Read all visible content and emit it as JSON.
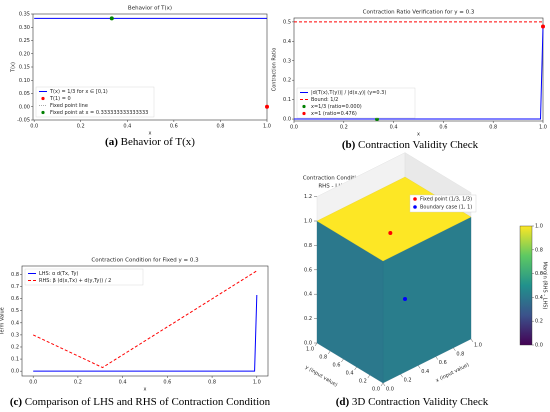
{
  "chart_data": [
    {
      "type": "line",
      "title": "Behavior of T(x)",
      "xlabel": "x",
      "ylabel": "T(x)",
      "caption": {
        "label": "(a)",
        "text": "Behavior of T(x)"
      },
      "xlim": [
        -0.005,
        1.0
      ],
      "ylim": [
        -0.05,
        0.35
      ],
      "xticks": [
        {
          "value": 0,
          "label": "0.0"
        },
        0.2,
        0.4,
        0.6,
        0.8,
        {
          "value": 1,
          "label": "1.0"
        }
      ],
      "yticks": [
        -0.05,
        {
          "value": 0,
          "label": "0.00"
        },
        0.05,
        {
          "value": 0.1,
          "label": "0.10"
        },
        0.15,
        {
          "value": 0.2,
          "label": "0.20"
        },
        0.25,
        {
          "value": 0.3,
          "label": "0.30"
        },
        0.35
      ],
      "legend": "lower left",
      "series": [
        {
          "name": "T(x) = 1/3 for x ∈ [0,1)",
          "color": "#0000ff",
          "style": "solid",
          "x": [
            0,
            1.0
          ],
          "values": [
            0.3333,
            0.3333
          ]
        },
        {
          "name": "T(1) = 0",
          "color": "#ff0000",
          "style": "point",
          "x": [
            1.0
          ],
          "values": [
            0
          ]
        },
        {
          "name": "Fixed point line",
          "color": "#aaaaaa",
          "style": "dotted"
        },
        {
          "name": "Fixed point at x = 0.333333333333333",
          "color": "#008000",
          "style": "point",
          "x": [
            0.3333
          ],
          "values": [
            0.3333
          ]
        }
      ]
    },
    {
      "type": "line",
      "title": "Contraction Ratio Verification for y = 0.3",
      "xlabel": "x",
      "ylabel": "Contraction Ratio",
      "caption": {
        "label": "(b)",
        "text": "Contraction Validity Check"
      },
      "xlim": [
        0,
        1.0
      ],
      "ylim": [
        -0.01,
        0.52
      ],
      "xticks": [
        {
          "value": 0,
          "label": "0.0"
        },
        0.2,
        0.4,
        0.6,
        0.8,
        {
          "value": 1,
          "label": "1.0"
        }
      ],
      "yticks": [
        {
          "value": 0,
          "label": "0.0"
        },
        0.1,
        0.2,
        0.3,
        0.4,
        0.5
      ],
      "legend": "lower left",
      "series": [
        {
          "name": "|d(T(x),T(y))| / |d(x,y)| (y=0.3)",
          "color": "#0000ff",
          "style": "solid",
          "x": [
            0,
            0.99,
            1.0
          ],
          "values": [
            0,
            0,
            0.476
          ]
        },
        {
          "name": "Bound: 1/2",
          "color": "#ff0000",
          "style": "dashed",
          "x": [
            0,
            1.0
          ],
          "values": [
            0.5,
            0.5
          ]
        },
        {
          "name": "x=1/3 (ratio=0.000)",
          "color": "#008000",
          "style": "point",
          "x": [
            0.3333
          ],
          "values": [
            0
          ]
        },
        {
          "name": "x=1 (ratio=0.476)",
          "color": "#ff0000",
          "style": "point",
          "x": [
            1.0
          ],
          "values": [
            0.476
          ]
        }
      ]
    },
    {
      "type": "line",
      "title": "Contraction Condition for Fixed y = 0.3",
      "xlabel": "x",
      "ylabel": "Term Value",
      "caption": {
        "label": "(c)",
        "text": "Comparison of LHS and RHS of Contraction Condition"
      },
      "xlim": [
        -0.05,
        1.05
      ],
      "ylim": [
        -0.04,
        0.87
      ],
      "xticks": [
        {
          "value": 0,
          "label": "0.0"
        },
        0.2,
        0.4,
        0.6,
        0.8,
        {
          "value": 1,
          "label": "1.0"
        }
      ],
      "yticks": [
        {
          "value": 0,
          "label": "0.0"
        },
        0.1,
        0.2,
        0.3,
        0.4,
        0.5,
        0.6,
        0.7,
        0.8
      ],
      "legend": "upper left",
      "series": [
        {
          "name": "LHS: α d(Tx, Ty)",
          "color": "#0000ff",
          "style": "solid",
          "x": [
            0,
            0.99,
            1.0
          ],
          "values": [
            0,
            0,
            0.63
          ]
        },
        {
          "name": "RHS: β (d(x,Tx) + d(y,Ty)) / 2",
          "color": "#ff0000",
          "style": "dashed",
          "x": [
            0,
            0.31,
            1.0
          ],
          "values": [
            0.3,
            0.03,
            0.83
          ]
        }
      ]
    },
    {
      "type": "surface3d",
      "title": [
        "Contraction Condition Surface:",
        "RHS - LHS vs. (x, y)"
      ],
      "xlabel": "x (input value)",
      "ylabel": "y (input value)",
      "colorbar_label": "Margin (RHS - LHS)",
      "caption": {
        "label": "(d)",
        "text": "3D Contraction Validity Check"
      },
      "xticks": [
        {
          "value": 0,
          "label": "0.0"
        },
        0.2,
        0.4,
        0.6,
        0.8,
        {
          "value": 1,
          "label": "1.0"
        }
      ],
      "yticks": [
        {
          "value": 0,
          "label": "0.0"
        },
        0.2,
        0.4,
        0.6,
        0.8,
        {
          "value": 1,
          "label": "1.0"
        }
      ],
      "zlim": [
        0,
        1.2
      ],
      "zticks": [
        {
          "value": 0,
          "label": "0.0"
        },
        0.2,
        0.4,
        0.6,
        0.8,
        {
          "value": 1,
          "label": "1.0"
        },
        1.2
      ],
      "clim": [
        0,
        1.0
      ],
      "cticks": [
        {
          "value": 0,
          "label": "0.0"
        },
        0.2,
        0.4,
        0.6,
        0.8,
        {
          "value": 1,
          "label": "1.0"
        }
      ],
      "surface_value": 1.0,
      "series": [
        {
          "name": "Fixed point (1/3, 1/3)",
          "color": "#ff0000",
          "x": [
            0.3333
          ],
          "y": [
            0.3333
          ],
          "z": [
            1.0
          ]
        },
        {
          "name": "Boundary case (1, 1)",
          "color": "#0000ff",
          "x": [
            1.0
          ],
          "y": [
            1.0
          ],
          "z": [
            0
          ]
        }
      ]
    }
  ]
}
